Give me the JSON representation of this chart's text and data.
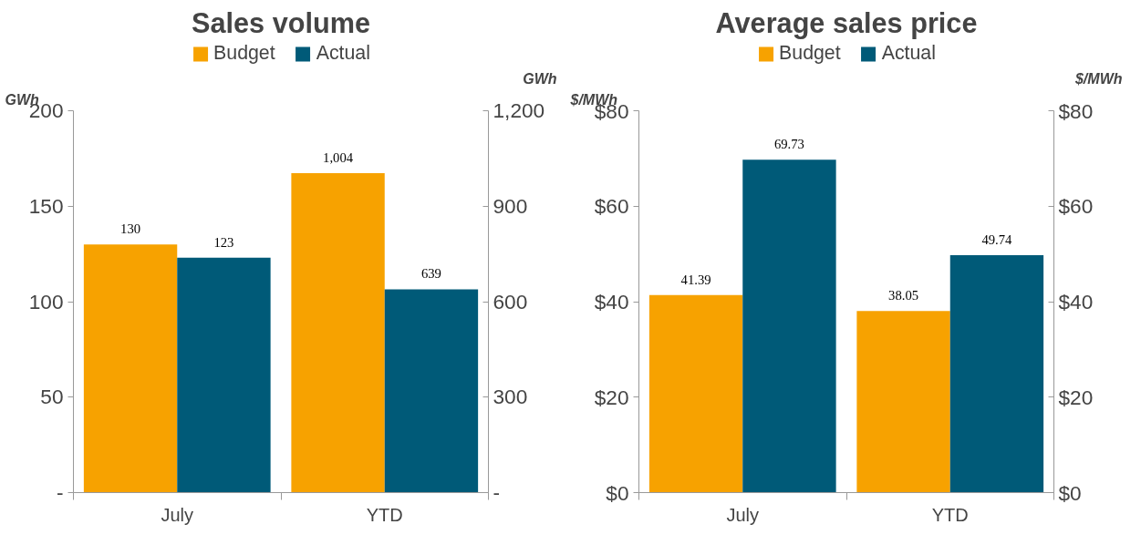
{
  "chart_data": [
    {
      "type": "bar",
      "title": "Sales volume",
      "categories": [
        "July",
        "YTD"
      ],
      "ylabel": "GWh",
      "y2label": "GWh",
      "ylim": [
        0,
        200
      ],
      "yticks": [
        {
          "value": 0,
          "label": "-"
        },
        50,
        100,
        150,
        200
      ],
      "y2lim": [
        0,
        1200
      ],
      "y2ticks": [
        {
          "value": 0,
          "label": "-"
        },
        300,
        600,
        900,
        {
          "value": 1200,
          "label": "1,200"
        }
      ],
      "legend": "top",
      "grid": false,
      "series": [
        {
          "name": "Budget",
          "color": "#f7a200",
          "values": [
            130,
            null
          ],
          "value_labels": [
            "130",
            null
          ]
        },
        {
          "name": "Actual",
          "color": "#005a78",
          "values": [
            123,
            null
          ],
          "value_labels": [
            "123",
            null
          ]
        },
        {
          "color": "#f7a200",
          "axis": "y2",
          "values": [
            null,
            1004
          ],
          "value_labels": [
            null,
            "1,004"
          ]
        },
        {
          "color": "#005a78",
          "axis": "y2",
          "values": [
            null,
            639
          ],
          "value_labels": [
            null,
            "639"
          ]
        }
      ]
    },
    {
      "type": "bar",
      "title": "Average sales price",
      "categories": [
        "July",
        "YTD"
      ],
      "ylabel": "$/MWh",
      "y2label": "$/MWh",
      "ylim": [
        0,
        80
      ],
      "yticks": [
        {
          "value": 0,
          "label": "$0"
        },
        {
          "value": 20,
          "label": "$20"
        },
        {
          "value": 40,
          "label": "$40"
        },
        {
          "value": 60,
          "label": "$60"
        },
        {
          "value": 80,
          "label": "$80"
        }
      ],
      "y2lim": [
        0,
        80
      ],
      "y2ticks": [
        {
          "value": 0,
          "label": "$0"
        },
        {
          "value": 20,
          "label": "$20"
        },
        {
          "value": 40,
          "label": "$40"
        },
        {
          "value": 60,
          "label": "$60"
        },
        {
          "value": 80,
          "label": "$80"
        }
      ],
      "legend": "top",
      "grid": false,
      "data_labels": true,
      "series": [
        {
          "name": "Budget",
          "color": "#f7a200",
          "values": [
            41.39,
            38.05
          ]
        },
        {
          "name": "Actual",
          "color": "#005a78",
          "values": [
            69.73,
            49.74
          ]
        }
      ]
    }
  ]
}
